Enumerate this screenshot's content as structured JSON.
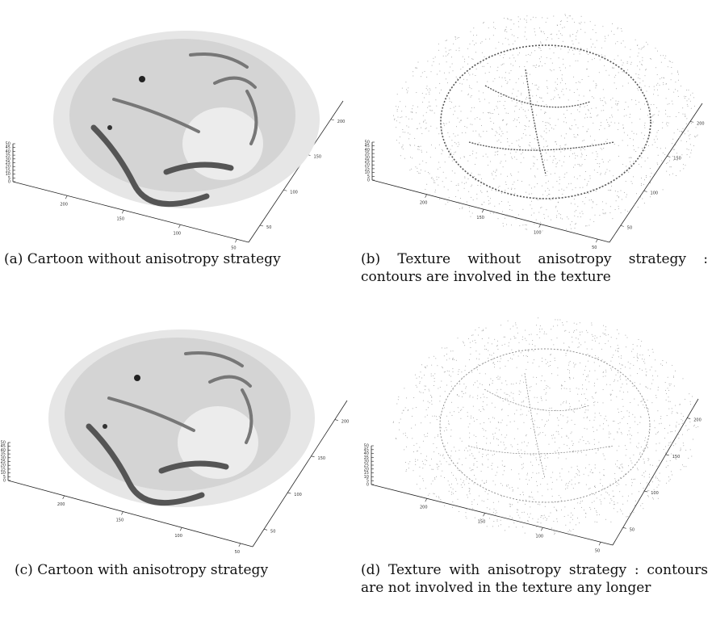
{
  "figures": [
    {
      "id": "a",
      "caption": "(a) Cartoon without anisotropy strategy",
      "kind": "cartoon",
      "z_ticks": [
        "50",
        "45",
        "40",
        "35",
        "30",
        "25",
        "20",
        "15",
        "10",
        "5",
        "0"
      ],
      "x_ticks": [
        "200",
        "150",
        "100",
        "50"
      ],
      "y_ticks": [
        "200",
        "150",
        "100",
        "50"
      ]
    },
    {
      "id": "b",
      "caption": "(b) Texture without anisotropy strategy : contours are involved in the texture",
      "kind": "texture",
      "z_ticks": [
        "50",
        "45",
        "40",
        "35",
        "30",
        "25",
        "20",
        "15",
        "10",
        "5",
        "0"
      ],
      "x_ticks": [
        "200",
        "150",
        "100",
        "50"
      ],
      "y_ticks": [
        "200",
        "150",
        "100",
        "50"
      ]
    },
    {
      "id": "c",
      "caption": "(c) Cartoon with anisotropy strategy",
      "kind": "cartoon",
      "z_ticks": [
        "50",
        "45",
        "40",
        "35",
        "30",
        "25",
        "20",
        "15",
        "10",
        "5",
        "0"
      ],
      "x_ticks": [
        "200",
        "150",
        "100",
        "50"
      ],
      "y_ticks": [
        "200",
        "150",
        "100",
        "50"
      ]
    },
    {
      "id": "d",
      "caption": "(d) Texture with anisotropy strategy : contours are not involved in the texture any longer",
      "kind": "texture",
      "z_ticks": [
        "50",
        "45",
        "40",
        "35",
        "30",
        "25",
        "20",
        "15",
        "10",
        "5",
        "0"
      ],
      "x_ticks": [
        "200",
        "150",
        "100",
        "50"
      ],
      "y_ticks": [
        "200",
        "150",
        "100",
        "50"
      ]
    }
  ]
}
